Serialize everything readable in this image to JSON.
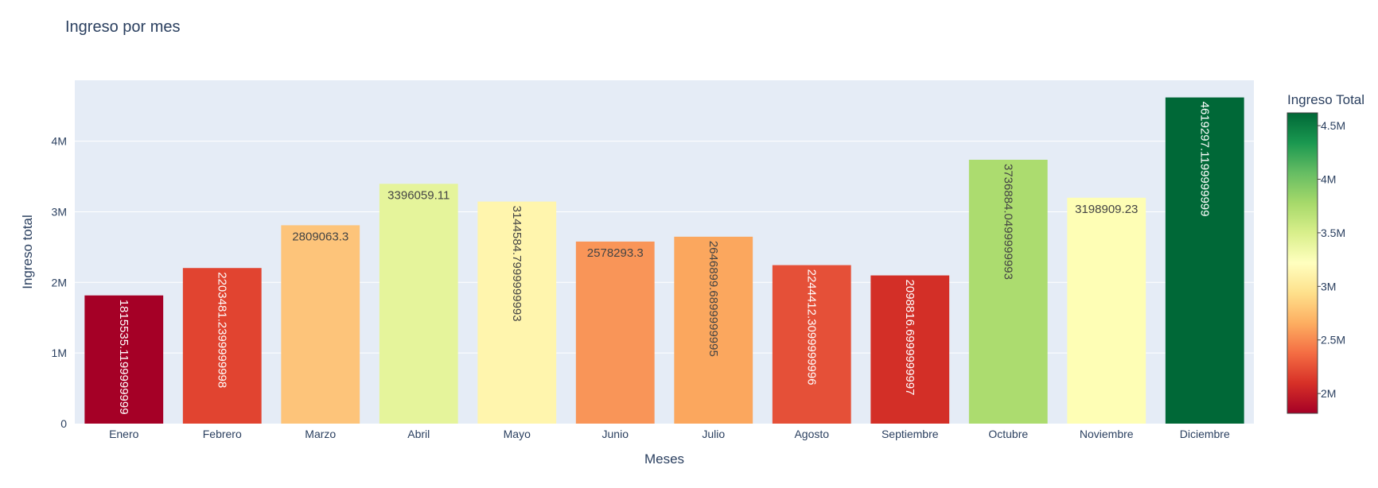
{
  "chart_data": {
    "type": "bar",
    "title": "Ingreso por mes",
    "xlabel": "Meses",
    "ylabel": "Ingreso total",
    "categories": [
      "Enero",
      "Febrero",
      "Marzo",
      "Abril",
      "Mayo",
      "Junio",
      "Julio",
      "Agosto",
      "Septiembre",
      "Octubre",
      "Noviembre",
      "Diciembre"
    ],
    "values": [
      1815535.1199999999,
      2203481.2399999998,
      2809063.3,
      3396059.11,
      3144584.7999999993,
      2578293.3,
      2646899.6899999995,
      2244412.3099999996,
      2098816.6999999997,
      3736884.0499999993,
      3198909.23,
      4619297.12
    ],
    "value_labels": [
      "1815535.1199999999",
      "2203481.2399999998",
      "2809063.3",
      "3396059.11",
      "3144584.7999999993",
      "2578293.3",
      "2646899.6899999995",
      "2244412.3099999996",
      "2098816.6999999997",
      "3736884.0499999993",
      "3198909.23",
      "4619297.1199999999"
    ],
    "bar_colors": [
      "#a50026",
      "#e14430",
      "#fdc47a",
      "#e5f49b",
      "#fff5ad",
      "#f99558",
      "#fba75e",
      "#e55038",
      "#d32f27",
      "#acdc6f",
      "#fefeb5",
      "#006837"
    ],
    "label_colors": [
      "#ffffff",
      "#ffffff",
      "#444444",
      "#444444",
      "#444444",
      "#444444",
      "#444444",
      "#ffffff",
      "#ffffff",
      "#444444",
      "#444444",
      "#ffffff"
    ],
    "label_rotated": [
      true,
      true,
      false,
      false,
      true,
      false,
      true,
      true,
      true,
      true,
      false,
      true
    ],
    "ylim": [
      0,
      4862418
    ],
    "y_ticks": [
      {
        "value": 0,
        "label": "0"
      },
      {
        "value": 1000000,
        "label": "1M"
      },
      {
        "value": 2000000,
        "label": "2M"
      },
      {
        "value": 3000000,
        "label": "3M"
      },
      {
        "value": 4000000,
        "label": "4M"
      }
    ],
    "grid": true,
    "colorbar": {
      "title": "Ingreso Total",
      "colorscale": "RdYlGn",
      "colors": [
        "#a50026",
        "#d73027",
        "#f46d43",
        "#fdae61",
        "#fee08b",
        "#ffffbf",
        "#d9ef8b",
        "#a6d96a",
        "#66bd63",
        "#1a9850",
        "#006837"
      ],
      "range": [
        1815535.12,
        4619297.12
      ],
      "ticks": [
        {
          "value": 2000000,
          "label": "2M"
        },
        {
          "value": 2500000,
          "label": "2.5M"
        },
        {
          "value": 3000000,
          "label": "3M"
        },
        {
          "value": 3500000,
          "label": "3.5M"
        },
        {
          "value": 4000000,
          "label": "4M"
        },
        {
          "value": 4500000,
          "label": "4.5M"
        }
      ]
    }
  }
}
